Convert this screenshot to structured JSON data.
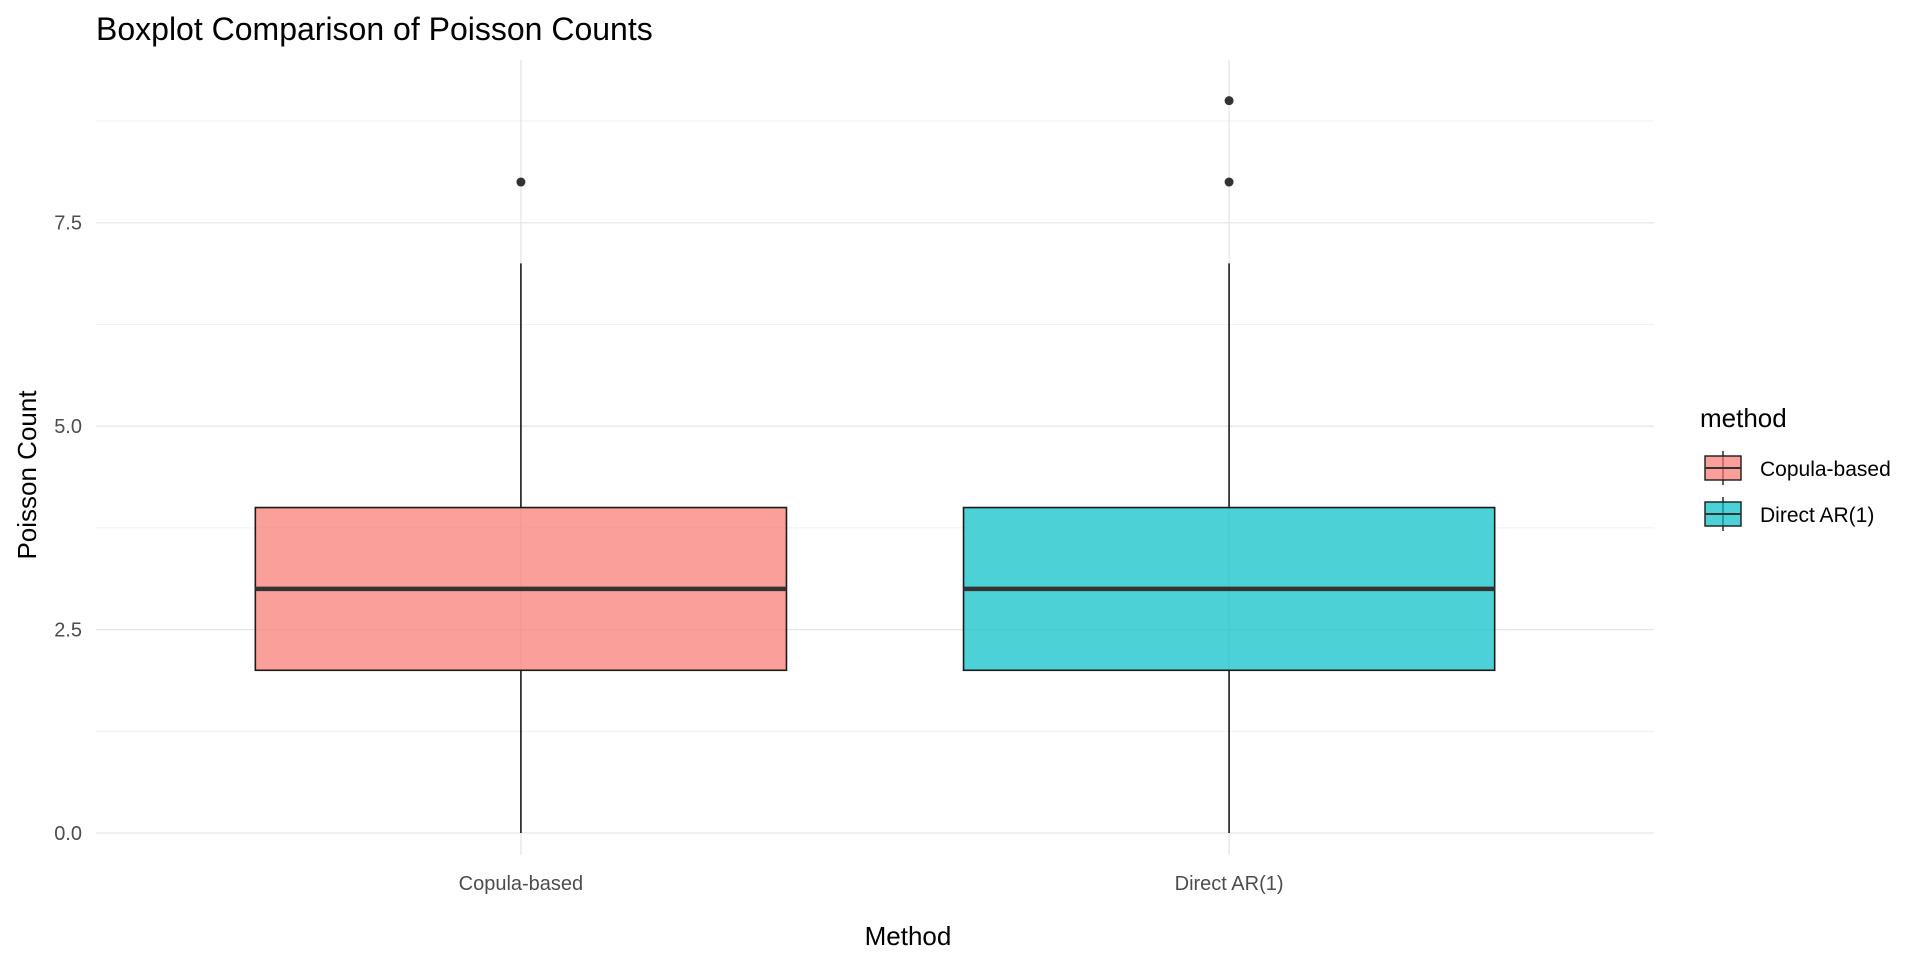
{
  "chart_data": {
    "type": "boxplot",
    "title": "Boxplot Comparison of Poisson Counts",
    "xlabel": "Method",
    "ylabel": "Poisson Count",
    "categories": [
      "Copula-based",
      "Direct AR(1)"
    ],
    "ylim": [
      -0.27,
      9.5
    ],
    "y_ticks": [
      0.0,
      2.5,
      5.0,
      7.5
    ],
    "y_tick_labels": [
      "0.0",
      "2.5",
      "5.0",
      "7.5"
    ],
    "y_minor_ticks": [
      1.25,
      3.75,
      6.25,
      8.75
    ],
    "grid": true,
    "boxes": [
      {
        "category": "Copula-based",
        "min": 0,
        "q1": 2,
        "median": 3,
        "q3": 4,
        "max": 7,
        "outliers": [
          8
        ],
        "color": "#F8766D"
      },
      {
        "category": "Direct AR(1)",
        "min": 0,
        "q1": 2,
        "median": 3,
        "q3": 4,
        "max": 7,
        "outliers": [
          8,
          9
        ],
        "color": "#00BFC4"
      }
    ],
    "legend": {
      "title": "method",
      "position": "right",
      "items": [
        {
          "label": "Copula-based",
          "color": "#F8766D"
        },
        {
          "label": "Direct AR(1)",
          "color": "#00BFC4"
        }
      ]
    }
  }
}
